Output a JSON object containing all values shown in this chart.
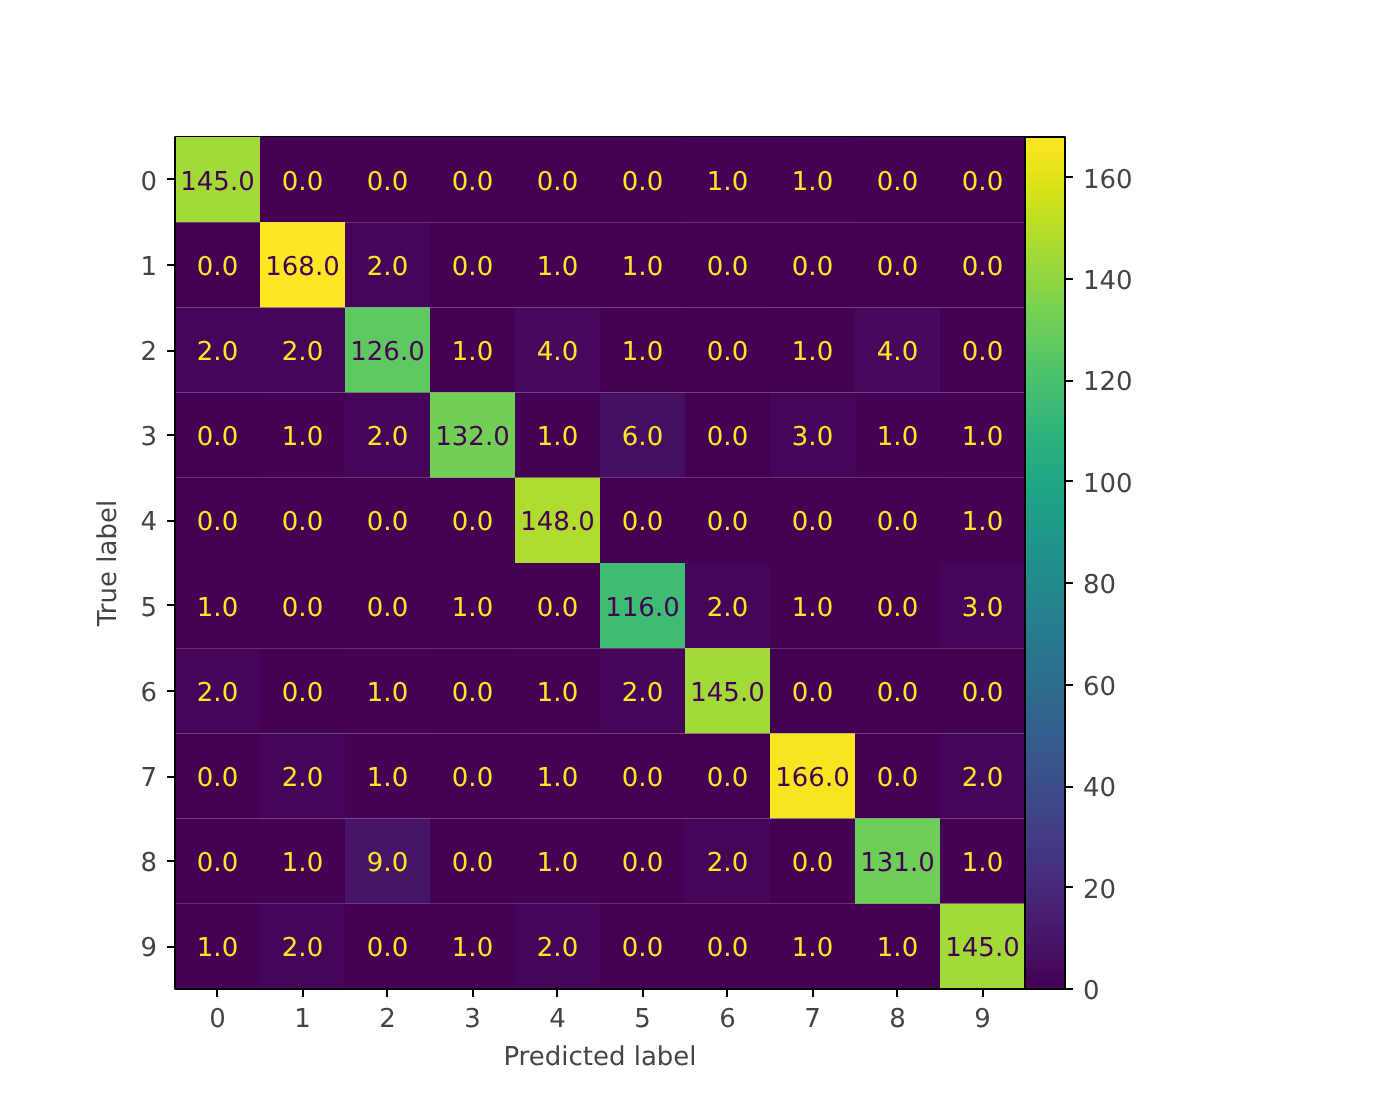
{
  "chart_data": {
    "type": "heatmap",
    "xlabel": "Predicted label",
    "ylabel": "True label",
    "categories": [
      "0",
      "1",
      "2",
      "3",
      "4",
      "5",
      "6",
      "7",
      "8",
      "9"
    ],
    "y_categories": [
      "0",
      "1",
      "2",
      "3",
      "4",
      "5",
      "6",
      "7",
      "8",
      "9"
    ],
    "cells": [
      [
        145,
        0,
        0,
        0,
        0,
        0,
        1,
        1,
        0,
        0
      ],
      [
        0,
        168,
        2,
        0,
        1,
        1,
        0,
        0,
        0,
        0
      ],
      [
        2,
        2,
        126,
        1,
        4,
        1,
        0,
        1,
        4,
        0
      ],
      [
        0,
        1,
        2,
        132,
        1,
        6,
        0,
        3,
        1,
        1
      ],
      [
        0,
        0,
        0,
        0,
        148,
        0,
        0,
        0,
        0,
        1
      ],
      [
        1,
        0,
        0,
        1,
        0,
        116,
        2,
        1,
        0,
        3
      ],
      [
        2,
        0,
        1,
        0,
        1,
        2,
        145,
        0,
        0,
        0
      ],
      [
        0,
        2,
        1,
        0,
        1,
        0,
        0,
        166,
        0,
        2
      ],
      [
        0,
        1,
        9,
        0,
        1,
        0,
        2,
        0,
        131,
        1
      ],
      [
        1,
        2,
        0,
        1,
        2,
        0,
        0,
        1,
        1,
        145
      ]
    ],
    "cell_labels": [
      [
        "145.0",
        "0.0",
        "0.0",
        "0.0",
        "0.0",
        "0.0",
        "1.0",
        "1.0",
        "0.0",
        "0.0"
      ],
      [
        "0.0",
        "168.0",
        "2.0",
        "0.0",
        "1.0",
        "1.0",
        "0.0",
        "0.0",
        "0.0",
        "0.0"
      ],
      [
        "2.0",
        "2.0",
        "126.0",
        "1.0",
        "4.0",
        "1.0",
        "0.0",
        "1.0",
        "4.0",
        "0.0"
      ],
      [
        "0.0",
        "1.0",
        "2.0",
        "132.0",
        "1.0",
        "6.0",
        "0.0",
        "3.0",
        "1.0",
        "1.0"
      ],
      [
        "0.0",
        "0.0",
        "0.0",
        "0.0",
        "148.0",
        "0.0",
        "0.0",
        "0.0",
        "0.0",
        "1.0"
      ],
      [
        "1.0",
        "0.0",
        "0.0",
        "1.0",
        "0.0",
        "116.0",
        "2.0",
        "1.0",
        "0.0",
        "3.0"
      ],
      [
        "2.0",
        "0.0",
        "1.0",
        "0.0",
        "1.0",
        "2.0",
        "145.0",
        "0.0",
        "0.0",
        "0.0"
      ],
      [
        "0.0",
        "2.0",
        "1.0",
        "0.0",
        "1.0",
        "0.0",
        "0.0",
        "166.0",
        "0.0",
        "2.0"
      ],
      [
        "0.0",
        "1.0",
        "9.0",
        "0.0",
        "1.0",
        "0.0",
        "2.0",
        "0.0",
        "131.0",
        "1.0"
      ],
      [
        "1.0",
        "2.0",
        "0.0",
        "1.0",
        "2.0",
        "0.0",
        "0.0",
        "1.0",
        "1.0",
        "145.0"
      ]
    ],
    "clim": [
      0,
      168
    ],
    "cticks": [
      0,
      20,
      40,
      60,
      80,
      100,
      120,
      140,
      160
    ],
    "grid": false
  }
}
